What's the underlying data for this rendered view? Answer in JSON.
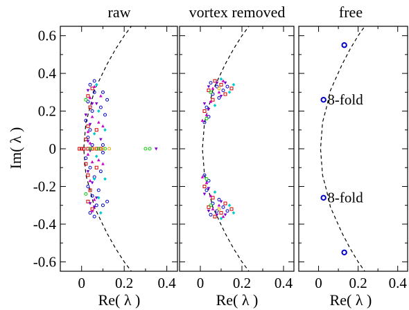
{
  "figure": {
    "ylabel": "Im( λ )"
  },
  "chart_data": [
    {
      "type": "scatter",
      "title": "raw",
      "xlabel": "Re( λ )",
      "ylabel": "Im( λ )",
      "xlim": [
        -0.1,
        0.45
      ],
      "ylim": [
        -0.65,
        0.65
      ],
      "xticks": [
        0,
        0.2,
        0.4
      ],
      "xtick_labels": [
        "0",
        "0.2",
        "0.4"
      ],
      "yticks": [
        -0.6,
        -0.4,
        -0.2,
        0,
        0.2,
        0.4,
        0.6
      ],
      "ytick_labels": [
        "-0.6",
        "-0.4",
        "-0.2",
        "0",
        "0.2",
        "0.4",
        "0.6"
      ],
      "grid": false,
      "reference_curve": {
        "style": "dashed",
        "x": [
          0.01,
          0.02,
          0.04,
          0.06,
          0.09,
          0.12,
          0.16,
          0.2,
          0.24
        ],
        "y": [
          0,
          0.14,
          0.22,
          0.31,
          0.38,
          0.45,
          0.53,
          0.6,
          0.66
        ]
      },
      "series": [
        {
          "marker": "circle",
          "color": "#0000cc",
          "points": [
            [
              0.04,
              0.34
            ],
            [
              0.06,
              0.3
            ],
            [
              0.03,
              0.25
            ],
            [
              0.05,
              0.2
            ],
            [
              0.02,
              0.15
            ],
            [
              0.04,
              0.1
            ],
            [
              0.03,
              0.06
            ],
            [
              0.05,
              0.02
            ],
            [
              0.02,
              -0.05
            ],
            [
              0.04,
              -0.1
            ],
            [
              0.06,
              -0.15
            ],
            [
              0.03,
              -0.2
            ],
            [
              0.05,
              -0.25
            ],
            [
              0.07,
              -0.3
            ],
            [
              0.04,
              -0.34
            ],
            [
              0.09,
              0.22
            ],
            [
              0.08,
              -0.22
            ],
            [
              0.1,
              0.3
            ],
            [
              0.1,
              -0.3
            ],
            [
              0.11,
              0.18
            ],
            [
              0.09,
              -0.12
            ],
            [
              0.06,
              0.36
            ],
            [
              0.06,
              -0.36
            ],
            [
              0.12,
              -0.28
            ],
            [
              0.12,
              0.26
            ],
            [
              0.1,
              0.02
            ],
            [
              0.1,
              -0.02
            ]
          ]
        },
        {
          "marker": "square",
          "color": "#cc0000",
          "points": [
            [
              0.05,
              0.32
            ],
            [
              0.03,
              0.28
            ],
            [
              0.04,
              0.22
            ],
            [
              0.03,
              0.12
            ],
            [
              0.02,
              0.05
            ],
            [
              0.01,
              0.0
            ],
            [
              0.0,
              0.0
            ],
            [
              -0.01,
              0.0
            ],
            [
              0.02,
              -0.08
            ],
            [
              0.03,
              -0.14
            ],
            [
              0.04,
              -0.22
            ],
            [
              0.03,
              -0.28
            ],
            [
              0.05,
              -0.32
            ],
            [
              0.07,
              0.1
            ],
            [
              0.07,
              -0.1
            ],
            [
              0.03,
              0.0
            ],
            [
              0.05,
              0.0
            ],
            [
              0.07,
              0.0
            ],
            [
              0.09,
              0.0
            ]
          ]
        },
        {
          "marker": "triangle-up",
          "color": "#cc00cc",
          "points": [
            [
              0.06,
              0.33
            ],
            [
              0.04,
              0.27
            ],
            [
              0.05,
              0.17
            ],
            [
              0.03,
              0.09
            ],
            [
              0.04,
              0.03
            ],
            [
              0.03,
              -0.03
            ],
            [
              0.05,
              -0.07
            ],
            [
              0.04,
              -0.17
            ],
            [
              0.06,
              -0.27
            ],
            [
              0.05,
              -0.33
            ],
            [
              0.08,
              0.14
            ],
            [
              0.08,
              -0.06
            ],
            [
              0.1,
              0.12
            ],
            [
              0.1,
              -0.08
            ],
            [
              0.09,
              0.28
            ]
          ]
        },
        {
          "marker": "triangle-down",
          "color": "#7a00cc",
          "points": [
            [
              0.03,
              0.31
            ],
            [
              0.05,
              0.24
            ],
            [
              0.02,
              0.18
            ],
            [
              0.04,
              0.13
            ],
            [
              0.03,
              0.04
            ],
            [
              0.04,
              -0.01
            ],
            [
              0.03,
              -0.12
            ],
            [
              0.05,
              -0.18
            ],
            [
              0.04,
              -0.29
            ],
            [
              0.06,
              -0.31
            ],
            [
              0.07,
              0.24
            ],
            [
              0.07,
              -0.26
            ],
            [
              0.09,
              0.05
            ],
            [
              0.35,
              0.0
            ]
          ]
        },
        {
          "marker": "diamond",
          "color": "#00cccc",
          "points": [
            [
              0.07,
              0.34
            ],
            [
              0.08,
              0.2
            ],
            [
              0.06,
              0.08
            ],
            [
              0.07,
              -0.04
            ],
            [
              0.06,
              -0.16
            ],
            [
              0.08,
              -0.26
            ],
            [
              0.09,
              -0.34
            ],
            [
              0.11,
              0.1
            ],
            [
              0.11,
              -0.16
            ]
          ]
        },
        {
          "marker": "circle",
          "color": "#00cc00",
          "points": [
            [
              0.02,
              0.26
            ],
            [
              0.02,
              -0.24
            ],
            [
              0.04,
              0.0
            ],
            [
              0.08,
              0.0
            ],
            [
              0.11,
              0.0
            ],
            [
              0.3,
              0.0
            ],
            [
              0.32,
              0.0
            ]
          ]
        },
        {
          "marker": "circle",
          "color": "#e6a800",
          "points": [
            [
              0.06,
              0.0
            ],
            [
              0.1,
              0.0
            ],
            [
              0.13,
              0.0
            ]
          ]
        }
      ]
    },
    {
      "type": "scatter",
      "title": "vortex removed",
      "xlabel": "Re( λ )",
      "xlim": [
        -0.1,
        0.45
      ],
      "ylim": [
        -0.65,
        0.65
      ],
      "xticks": [
        0,
        0.2,
        0.4
      ],
      "xtick_labels": [
        "0",
        "0.2",
        "0.4"
      ],
      "yticks": [
        -0.6,
        -0.4,
        -0.2,
        0,
        0.2,
        0.4,
        0.6
      ],
      "grid": false,
      "reference_curve": {
        "style": "dashed",
        "x": [
          0.01,
          0.02,
          0.04,
          0.06,
          0.09,
          0.12,
          0.16,
          0.2,
          0.24
        ],
        "y": [
          0,
          0.14,
          0.22,
          0.31,
          0.38,
          0.45,
          0.53,
          0.6,
          0.66
        ]
      },
      "series": [
        {
          "marker": "circle",
          "color": "#0000cc",
          "points": [
            [
              0.05,
              0.35
            ],
            [
              0.08,
              0.33
            ],
            [
              0.11,
              0.31
            ],
            [
              0.06,
              0.29
            ],
            [
              0.09,
              0.27
            ],
            [
              0.03,
              0.22
            ],
            [
              0.04,
              0.17
            ],
            [
              0.02,
              0.14
            ],
            [
              0.05,
              -0.35
            ],
            [
              0.08,
              -0.33
            ],
            [
              0.11,
              -0.31
            ],
            [
              0.06,
              -0.29
            ],
            [
              0.09,
              -0.27
            ],
            [
              0.03,
              -0.22
            ],
            [
              0.04,
              -0.17
            ],
            [
              0.02,
              -0.14
            ],
            [
              0.13,
              0.33
            ],
            [
              0.13,
              -0.33
            ]
          ]
        },
        {
          "marker": "square",
          "color": "#cc0000",
          "points": [
            [
              0.07,
              0.36
            ],
            [
              0.1,
              0.34
            ],
            [
              0.04,
              0.31
            ],
            [
              0.12,
              0.29
            ],
            [
              0.06,
              0.26
            ],
            [
              0.02,
              0.2
            ],
            [
              0.07,
              -0.36
            ],
            [
              0.1,
              -0.34
            ],
            [
              0.04,
              -0.31
            ],
            [
              0.12,
              -0.29
            ],
            [
              0.06,
              -0.26
            ],
            [
              0.02,
              -0.2
            ],
            [
              0.15,
              -0.32
            ],
            [
              0.15,
              0.32
            ]
          ]
        },
        {
          "marker": "triangle-up",
          "color": "#cc00cc",
          "points": [
            [
              0.06,
              0.32
            ],
            [
              0.09,
              0.3
            ],
            [
              0.05,
              0.25
            ],
            [
              0.03,
              0.18
            ],
            [
              0.01,
              0.15
            ],
            [
              0.06,
              -0.32
            ],
            [
              0.09,
              -0.3
            ],
            [
              0.05,
              -0.25
            ],
            [
              0.03,
              -0.18
            ],
            [
              0.01,
              -0.15
            ],
            [
              0.11,
              0.36
            ],
            [
              0.11,
              -0.36
            ]
          ]
        },
        {
          "marker": "triangle-down",
          "color": "#7a00cc",
          "points": [
            [
              0.08,
              0.35
            ],
            [
              0.04,
              0.33
            ],
            [
              0.1,
              0.28
            ],
            [
              0.02,
              0.24
            ],
            [
              0.04,
              0.21
            ],
            [
              0.08,
              -0.35
            ],
            [
              0.04,
              -0.33
            ],
            [
              0.1,
              -0.28
            ],
            [
              0.02,
              -0.24
            ],
            [
              0.04,
              -0.21
            ],
            [
              0.12,
              0.35
            ],
            [
              0.12,
              -0.35
            ]
          ]
        },
        {
          "marker": "diamond",
          "color": "#00cccc",
          "points": [
            [
              0.14,
              0.3
            ],
            [
              0.1,
              0.37
            ],
            [
              0.07,
              0.23
            ],
            [
              0.14,
              -0.3
            ],
            [
              0.1,
              -0.37
            ],
            [
              0.07,
              -0.23
            ],
            [
              0.16,
              0.34
            ],
            [
              0.16,
              -0.34
            ]
          ]
        },
        {
          "marker": "circle",
          "color": "#00cc00",
          "points": [
            [
              0.05,
              0.3
            ],
            [
              0.05,
              -0.3
            ],
            [
              0.03,
              0.16
            ],
            [
              0.03,
              -0.16
            ]
          ]
        },
        {
          "marker": "circle",
          "color": "#e6a800",
          "points": [
            [
              0.09,
              0.32
            ],
            [
              0.09,
              -0.32
            ]
          ]
        }
      ]
    },
    {
      "type": "scatter",
      "title": "free",
      "xlabel": "Re( λ )",
      "xlim": [
        -0.1,
        0.45
      ],
      "ylim": [
        -0.65,
        0.65
      ],
      "xticks": [
        0,
        0.2,
        0.4
      ],
      "xtick_labels": [
        "0",
        "0.2",
        "0.4"
      ],
      "yticks": [
        -0.6,
        -0.4,
        -0.2,
        0,
        0.2,
        0.4,
        0.6
      ],
      "grid": false,
      "reference_curve": {
        "style": "dashed",
        "x": [
          0.01,
          0.02,
          0.04,
          0.06,
          0.09,
          0.12,
          0.16,
          0.2,
          0.24
        ],
        "y": [
          0,
          0.14,
          0.22,
          0.31,
          0.38,
          0.45,
          0.53,
          0.6,
          0.66
        ]
      },
      "series": [
        {
          "marker": "circle",
          "color": "#0000cc",
          "points": [
            [
              0.13,
              0.55
            ],
            [
              0.025,
              0.26
            ],
            [
              0.025,
              -0.26
            ],
            [
              0.13,
              -0.55
            ]
          ]
        }
      ],
      "annotations": [
        {
          "text": "8-fold",
          "x": 0.045,
          "y": 0.235
        },
        {
          "text": "8-fold",
          "x": 0.045,
          "y": -0.285
        }
      ]
    }
  ]
}
